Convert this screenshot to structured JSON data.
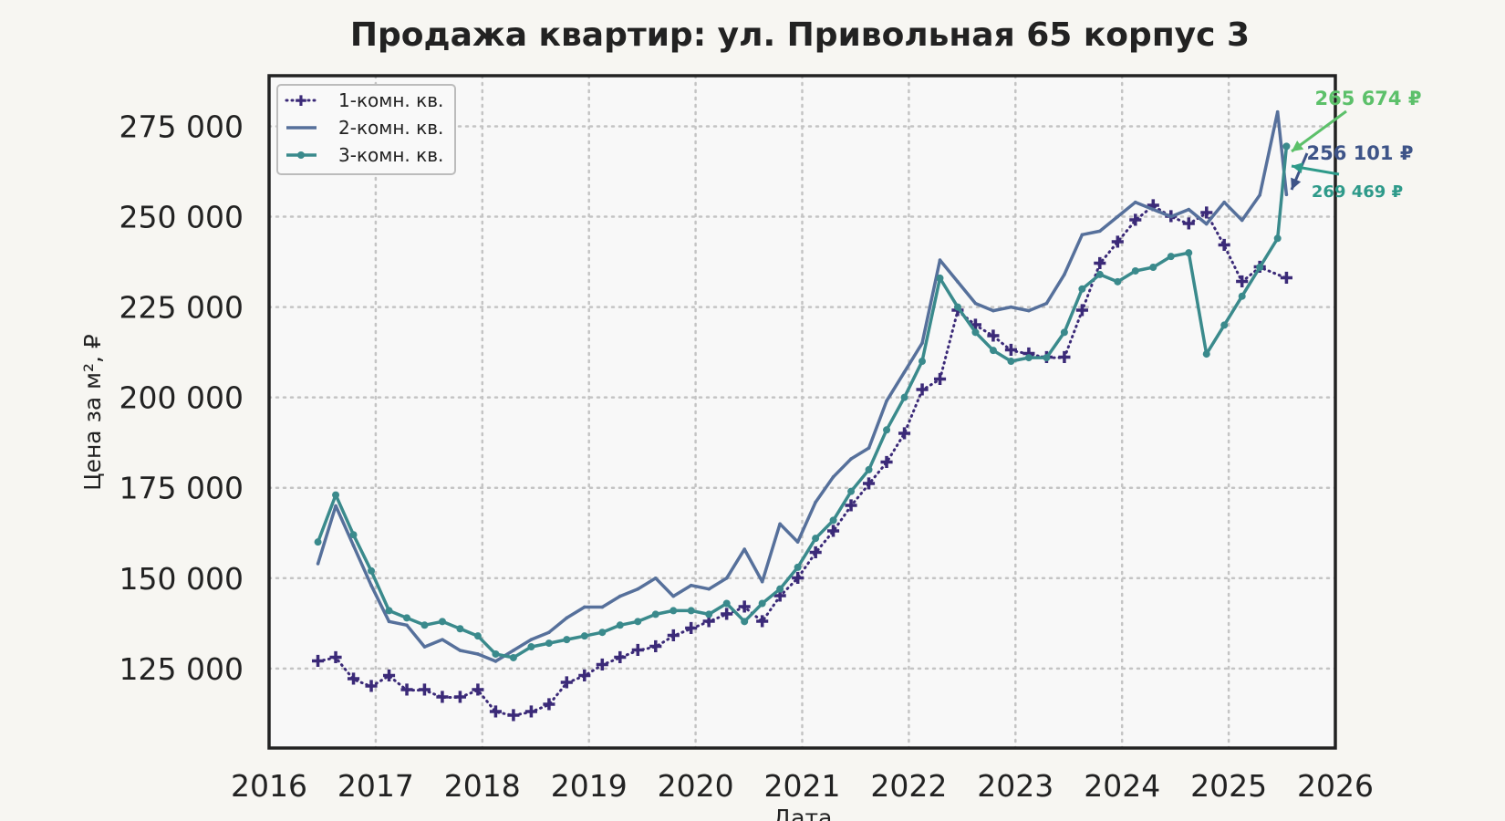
{
  "chart_data": {
    "type": "line",
    "title": "Продажа квартир: ул. Привольная 65 корпус 3",
    "xlabel": "Дата",
    "ylabel": "Цена за м², ₽",
    "xlim": [
      2016,
      2026
    ],
    "ylim": [
      103000,
      289000
    ],
    "x_ticks": [
      "2016",
      "2017",
      "2018",
      "2019",
      "2020",
      "2021",
      "2022",
      "2023",
      "2024",
      "2025",
      "2026"
    ],
    "y_ticks": [
      {
        "value": 125000,
        "label": "125 000"
      },
      {
        "value": 150000,
        "label": "150 000"
      },
      {
        "value": 175000,
        "label": "175 000"
      },
      {
        "value": 200000,
        "label": "200 000"
      },
      {
        "value": 225000,
        "label": "225 000"
      },
      {
        "value": 250000,
        "label": "250 000"
      },
      {
        "value": 275000,
        "label": "275 000"
      }
    ],
    "grid": true,
    "legend_position": "top-left",
    "series": [
      {
        "name": "1-комн. кв.",
        "color": "#3b2a78",
        "style": "dotted-markers",
        "x": [
          "2016-06",
          "2016-08",
          "2016-10",
          "2016-12",
          "2017-02",
          "2017-04",
          "2017-06",
          "2017-08",
          "2017-10",
          "2017-12",
          "2018-02",
          "2018-04",
          "2018-06",
          "2018-08",
          "2018-10",
          "2018-12",
          "2019-02",
          "2019-04",
          "2019-06",
          "2019-08",
          "2019-10",
          "2019-12",
          "2020-02",
          "2020-04",
          "2020-06",
          "2020-08",
          "2020-10",
          "2020-12",
          "2021-02",
          "2021-04",
          "2021-06",
          "2021-08",
          "2021-10",
          "2021-12",
          "2022-02",
          "2022-04",
          "2022-06",
          "2022-08",
          "2022-10",
          "2022-12",
          "2023-02",
          "2023-04",
          "2023-06",
          "2023-08",
          "2023-10",
          "2023-12",
          "2024-02",
          "2024-04",
          "2024-06",
          "2024-08",
          "2024-10",
          "2024-12",
          "2025-02",
          "2025-04",
          "2025-07"
        ],
        "values": [
          127000,
          128000,
          122000,
          120000,
          123000,
          119000,
          119000,
          117000,
          117000,
          119000,
          113000,
          112000,
          113000,
          115000,
          121000,
          123000,
          126000,
          128000,
          130000,
          131000,
          134000,
          136000,
          138000,
          140000,
          142000,
          138000,
          145000,
          150000,
          157000,
          163000,
          170000,
          176000,
          182000,
          190000,
          202000,
          205000,
          224000,
          220000,
          217000,
          213000,
          212000,
          211000,
          211000,
          224000,
          237000,
          243000,
          249000,
          253000,
          250000,
          248000,
          251000,
          242000,
          232000,
          236000,
          233000
        ]
      },
      {
        "name": "2-комн. кв.",
        "color": "#56709b",
        "style": "solid",
        "x": [
          "2016-06",
          "2016-08",
          "2016-10",
          "2016-12",
          "2017-02",
          "2017-04",
          "2017-06",
          "2017-08",
          "2017-10",
          "2017-12",
          "2018-02",
          "2018-04",
          "2018-06",
          "2018-08",
          "2018-10",
          "2018-12",
          "2019-02",
          "2019-04",
          "2019-06",
          "2019-08",
          "2019-10",
          "2019-12",
          "2020-02",
          "2020-04",
          "2020-06",
          "2020-08",
          "2020-10",
          "2020-12",
          "2021-02",
          "2021-04",
          "2021-06",
          "2021-08",
          "2021-10",
          "2021-12",
          "2022-02",
          "2022-04",
          "2022-06",
          "2022-08",
          "2022-10",
          "2022-12",
          "2023-02",
          "2023-04",
          "2023-06",
          "2023-08",
          "2023-10",
          "2023-12",
          "2024-02",
          "2024-04",
          "2024-06",
          "2024-08",
          "2024-10",
          "2024-12",
          "2025-02",
          "2025-04",
          "2025-06",
          "2025-07"
        ],
        "values": [
          154000,
          170000,
          159000,
          148000,
          138000,
          137000,
          131000,
          133000,
          130000,
          129000,
          127000,
          130000,
          133000,
          135000,
          139000,
          142000,
          142000,
          145000,
          147000,
          150000,
          145000,
          148000,
          147000,
          150000,
          158000,
          149000,
          165000,
          160000,
          171000,
          178000,
          183000,
          186000,
          199000,
          207000,
          215000,
          238000,
          232000,
          226000,
          224000,
          225000,
          224000,
          226000,
          234000,
          245000,
          246000,
          250000,
          254000,
          252000,
          250000,
          252000,
          248000,
          254000,
          249000,
          256000,
          279000,
          256101
        ]
      },
      {
        "name": "3-комн. кв.",
        "color": "#3a8a8c",
        "style": "solid-markers",
        "x": [
          "2016-06",
          "2016-08",
          "2016-10",
          "2016-12",
          "2017-02",
          "2017-04",
          "2017-06",
          "2017-08",
          "2017-10",
          "2017-12",
          "2018-02",
          "2018-04",
          "2018-06",
          "2018-08",
          "2018-10",
          "2018-12",
          "2019-02",
          "2019-04",
          "2019-06",
          "2019-08",
          "2019-10",
          "2019-12",
          "2020-02",
          "2020-04",
          "2020-06",
          "2020-08",
          "2020-10",
          "2020-12",
          "2021-02",
          "2021-04",
          "2021-06",
          "2021-08",
          "2021-10",
          "2021-12",
          "2022-02",
          "2022-04",
          "2022-06",
          "2022-08",
          "2022-10",
          "2022-12",
          "2023-02",
          "2023-04",
          "2023-06",
          "2023-08",
          "2023-10",
          "2023-12",
          "2024-02",
          "2024-04",
          "2024-06",
          "2024-08",
          "2024-10",
          "2024-12",
          "2025-02",
          "2025-04",
          "2025-06",
          "2025-07"
        ],
        "values": [
          160000,
          173000,
          162000,
          152000,
          141000,
          139000,
          137000,
          138000,
          136000,
          134000,
          129000,
          128000,
          131000,
          132000,
          133000,
          134000,
          135000,
          137000,
          138000,
          140000,
          141000,
          141000,
          140000,
          143000,
          138000,
          143000,
          147000,
          153000,
          161000,
          166000,
          174000,
          180000,
          191000,
          200000,
          210000,
          233000,
          225000,
          218000,
          213000,
          210000,
          211000,
          211000,
          218000,
          230000,
          234000,
          232000,
          235000,
          236000,
          239000,
          240000,
          212000,
          220000,
          228000,
          236000,
          244000,
          269469
        ]
      }
    ],
    "annotations": [
      {
        "series": "3-комн. кв.",
        "text": "265 674 ₽",
        "color": "#5cc06a"
      },
      {
        "series": "2-комн. кв.",
        "text": "256 101 ₽",
        "color": "#3e5488"
      },
      {
        "series": "3-комн. кв.",
        "text": "269 469 ₽",
        "color": "#2e9a8a"
      }
    ]
  }
}
